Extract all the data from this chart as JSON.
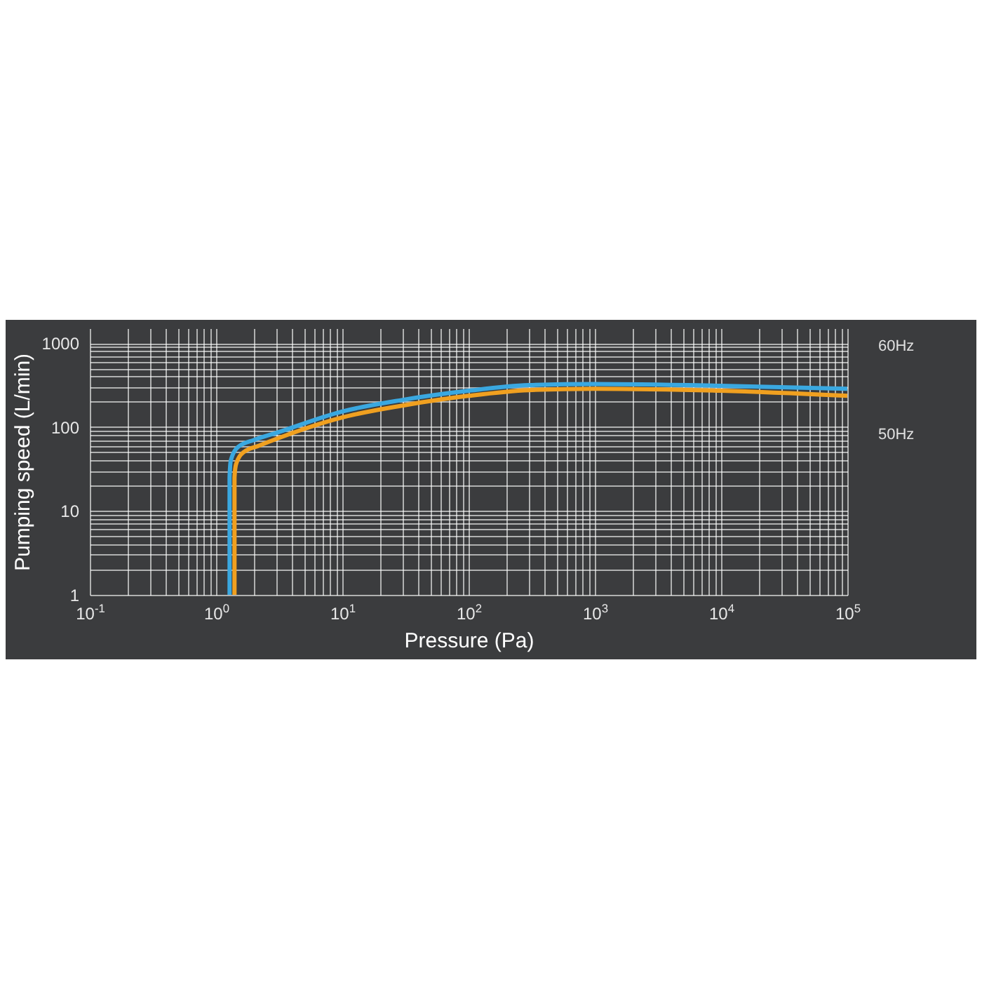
{
  "chart_data": {
    "type": "line",
    "xlabel": "Pressure (Pa)",
    "ylabel": "Pumping speed (L/min)",
    "log": "xy",
    "grid": true,
    "legend": false,
    "marker": "none",
    "line_style": "solid",
    "xlim": [
      0.1,
      100000
    ],
    "ylim": [
      1,
      1500
    ],
    "xticks": [
      {
        "value": 0.1,
        "label": "10$^{-1}$"
      },
      {
        "value": 0.2,
        "label": null
      },
      {
        "value": 0.3,
        "label": null
      },
      {
        "value": 0.4,
        "label": null
      },
      {
        "value": 0.5,
        "label": null
      },
      {
        "value": 0.6,
        "label": null
      },
      {
        "value": 0.7,
        "label": null
      },
      {
        "value": 0.8,
        "label": null
      },
      {
        "value": 0.9,
        "label": null
      },
      {
        "value": 1,
        "label": "10$^{0}$"
      },
      {
        "value": 2,
        "label": null
      },
      {
        "value": 3,
        "label": null
      },
      {
        "value": 4,
        "label": null
      },
      {
        "value": 5,
        "label": null
      },
      {
        "value": 6,
        "label": null
      },
      {
        "value": 7,
        "label": null
      },
      {
        "value": 8,
        "label": null
      },
      {
        "value": 9,
        "label": null
      },
      {
        "value": 10,
        "label": "10$^{1}$"
      },
      {
        "value": 20,
        "label": null
      },
      {
        "value": 30,
        "label": null
      },
      {
        "value": 40,
        "label": null
      },
      {
        "value": 50,
        "label": null
      },
      {
        "value": 60,
        "label": null
      },
      {
        "value": 70,
        "label": null
      },
      {
        "value": 80,
        "label": null
      },
      {
        "value": 90,
        "label": null
      },
      {
        "value": 100,
        "label": "10$^{2}$"
      },
      {
        "value": 200,
        "label": null
      },
      {
        "value": 300,
        "label": null
      },
      {
        "value": 400,
        "label": null
      },
      {
        "value": 500,
        "label": null
      },
      {
        "value": 600,
        "label": null
      },
      {
        "value": 700,
        "label": null
      },
      {
        "value": 800,
        "label": null
      },
      {
        "value": 900,
        "label": null
      },
      {
        "value": 1000,
        "label": "10$^{3}$"
      },
      {
        "value": 2000,
        "label": null
      },
      {
        "value": 3000,
        "label": null
      },
      {
        "value": 4000,
        "label": null
      },
      {
        "value": 5000,
        "label": null
      },
      {
        "value": 6000,
        "label": null
      },
      {
        "value": 7000,
        "label": null
      },
      {
        "value": 8000,
        "label": null
      },
      {
        "value": 9000,
        "label": null
      },
      {
        "value": 10000,
        "label": "10$^{4}$"
      },
      {
        "value": 20000,
        "label": null
      },
      {
        "value": 30000,
        "label": null
      },
      {
        "value": 40000,
        "label": null
      },
      {
        "value": 50000,
        "label": null
      },
      {
        "value": 60000,
        "label": null
      },
      {
        "value": 70000,
        "label": null
      },
      {
        "value": 80000,
        "label": null
      },
      {
        "value": 90000,
        "label": null
      },
      {
        "value": 100000,
        "label": "10$^{5}$"
      }
    ],
    "yticks": [
      1,
      {
        "value": 2,
        "label": null
      },
      {
        "value": 3,
        "label": null
      },
      {
        "value": 4,
        "label": null
      },
      {
        "value": 5,
        "label": null
      },
      {
        "value": 6,
        "label": null
      },
      {
        "value": 7,
        "label": null
      },
      {
        "value": 8,
        "label": null
      },
      {
        "value": 9,
        "label": null
      },
      10,
      {
        "value": 20,
        "label": null
      },
      {
        "value": 30,
        "label": null
      },
      {
        "value": 40,
        "label": null
      },
      {
        "value": 50,
        "label": null
      },
      {
        "value": 60,
        "label": null
      },
      {
        "value": 70,
        "label": null
      },
      {
        "value": 80,
        "label": null
      },
      {
        "value": 90,
        "label": null
      },
      100,
      {
        "value": 200,
        "label": null
      },
      {
        "value": 300,
        "label": null
      },
      {
        "value": 400,
        "label": null
      },
      {
        "value": 500,
        "label": null
      },
      {
        "value": 600,
        "label": null
      },
      {
        "value": 700,
        "label": null
      },
      {
        "value": 800,
        "label": null
      },
      {
        "value": 900,
        "label": null
      },
      1000
    ],
    "series": [
      {
        "name": "60Hz",
        "color": "#3aa8e0",
        "x": [
          1.28,
          1.28,
          1.31,
          1.5,
          2,
          3,
          10,
          30,
          100,
          300,
          1000,
          10000,
          100000
        ],
        "values": [
          1,
          25,
          40,
          58,
          70,
          85,
          153,
          210,
          270,
          315,
          325,
          310,
          285
        ]
      },
      {
        "name": "50Hz",
        "color": "#f0a020",
        "x": [
          1.4,
          1.4,
          1.44,
          1.65,
          2.2,
          3,
          10,
          30,
          100,
          300,
          1000,
          10000,
          100000
        ],
        "values": [
          1,
          25,
          36,
          50,
          60,
          72,
          130,
          180,
          235,
          275,
          285,
          270,
          235
        ]
      }
    ]
  }
}
